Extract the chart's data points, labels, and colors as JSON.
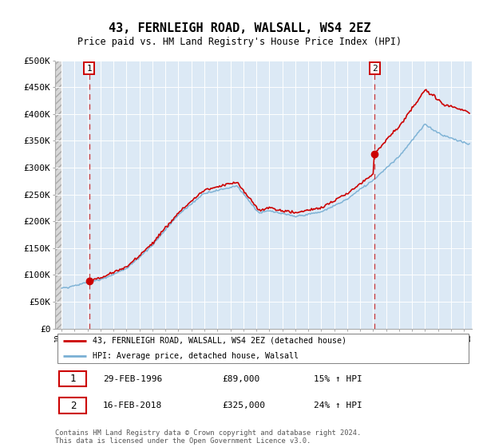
{
  "title": "43, FERNLEIGH ROAD, WALSALL, WS4 2EZ",
  "subtitle": "Price paid vs. HM Land Registry's House Price Index (HPI)",
  "ylabel_ticks": [
    0,
    50000,
    100000,
    150000,
    200000,
    250000,
    300000,
    350000,
    400000,
    450000,
    500000
  ],
  "ylabel_labels": [
    "£0",
    "£50K",
    "£100K",
    "£150K",
    "£200K",
    "£250K",
    "£300K",
    "£350K",
    "£400K",
    "£450K",
    "£500K"
  ],
  "ylim": [
    0,
    500000
  ],
  "xlim_start": 1993.5,
  "xlim_end": 2025.6,
  "hatch_end": 1994.0,
  "sale1_year": 1996.12,
  "sale1_price": 89000,
  "sale2_year": 2018.12,
  "sale2_price": 325000,
  "price_color": "#cc0000",
  "hpi_color": "#7ab0d4",
  "vline_color": "#cc3333",
  "plot_bg": "#dce9f5",
  "hatch_color": "#c8c8c8",
  "grid_color": "#ffffff",
  "legend_line1": "43, FERNLEIGH ROAD, WALSALL, WS4 2EZ (detached house)",
  "legend_line2": "HPI: Average price, detached house, Walsall",
  "row1_num": "1",
  "row1_date": "29-FEB-1996",
  "row1_price": "£89,000",
  "row1_hpi": "15% ↑ HPI",
  "row2_num": "2",
  "row2_date": "16-FEB-2018",
  "row2_price": "£325,000",
  "row2_hpi": "24% ↑ HPI",
  "footnote1": "Contains HM Land Registry data © Crown copyright and database right 2024.",
  "footnote2": "This data is licensed under the Open Government Licence v3.0."
}
